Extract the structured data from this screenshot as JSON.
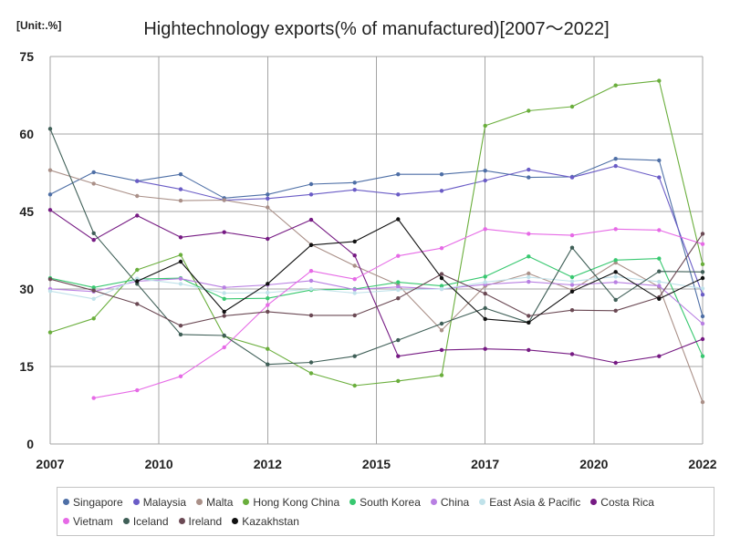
{
  "chart_data": {
    "type": "line",
    "title": "Hightechnology exports(% of manufactured)[2007～2022]",
    "unit_label": "[Unit:.%]",
    "x": [
      2007,
      2008,
      2009,
      2010,
      2011,
      2012,
      2013,
      2014,
      2015,
      2016,
      2017,
      2018,
      2019,
      2020,
      2021,
      2022
    ],
    "xlim": [
      2007,
      2022
    ],
    "xticklabels": [
      "2007",
      "2010",
      "2012",
      "2015",
      "2017",
      "2020",
      "2022"
    ],
    "ylim": [
      0,
      75
    ],
    "yticks": [
      0,
      15,
      30,
      45,
      60,
      75
    ],
    "grid": true,
    "legend": "bottom",
    "series": [
      {
        "name": "Singapore",
        "color": "#4e6fa6",
        "values": [
          48.3,
          52.6,
          50.9,
          52.2,
          47.6,
          48.3,
          50.3,
          50.6,
          52.2,
          52.2,
          52.9,
          51.6,
          51.7,
          55.2,
          54.9,
          24.7
        ]
      },
      {
        "name": "Malaysia",
        "color": "#6a5cc6",
        "values": [
          null,
          null,
          50.9,
          49.3,
          47.2,
          47.5,
          48.3,
          49.2,
          48.3,
          49.0,
          51.0,
          53.1,
          51.6,
          53.8,
          51.6,
          28.9
        ]
      },
      {
        "name": "Malta",
        "color": "#aa9088",
        "values": [
          53.0,
          50.4,
          48.0,
          47.1,
          47.2,
          45.8,
          38.6,
          34.5,
          30.8,
          22.0,
          30.6,
          33.0,
          29.8,
          35.1,
          30.4,
          8.1
        ]
      },
      {
        "name": "Hong Kong China",
        "color": "#6aae3c",
        "values": [
          21.6,
          24.3,
          33.7,
          36.6,
          20.9,
          18.4,
          13.7,
          11.3,
          12.2,
          13.3,
          61.6,
          64.5,
          65.3,
          69.4,
          70.3,
          34.8
        ]
      },
      {
        "name": "South Korea",
        "color": "#38c870",
        "values": [
          32.1,
          30.3,
          31.9,
          32.1,
          28.1,
          28.2,
          29.8,
          30.0,
          31.3,
          30.6,
          32.4,
          36.3,
          32.3,
          35.6,
          35.9,
          17.0
        ]
      },
      {
        "name": "China",
        "color": "#b87fe2",
        "values": [
          30.0,
          29.5,
          31.5,
          32.0,
          30.3,
          30.8,
          31.6,
          29.9,
          30.4,
          30.0,
          30.9,
          31.4,
          30.8,
          31.3,
          30.6,
          23.3
        ]
      },
      {
        "name": "East Asia & Pacific",
        "color": "#c0e2ea",
        "values": [
          29.6,
          28.1,
          32.0,
          31.0,
          29.2,
          29.3,
          30.0,
          29.2,
          29.8,
          30.0,
          31.3,
          32.3,
          31.5,
          32.4,
          31.4,
          30.1
        ]
      },
      {
        "name": "Costa Rica",
        "color": "#761a83",
        "values": [
          45.3,
          39.5,
          44.2,
          40.0,
          41.0,
          39.7,
          43.4,
          36.5,
          17.0,
          18.2,
          18.4,
          18.2,
          17.4,
          15.7,
          17.0,
          20.3
        ]
      },
      {
        "name": "Vietnam",
        "color": "#e66ae6",
        "values": [
          null,
          8.9,
          10.4,
          13.1,
          18.7,
          26.9,
          33.5,
          31.9,
          36.4,
          37.9,
          41.6,
          40.7,
          40.4,
          41.6,
          41.4,
          38.7
        ]
      },
      {
        "name": "Iceland",
        "color": "#3f5f57",
        "values": [
          61.0,
          40.8,
          31.0,
          21.2,
          21.0,
          15.4,
          15.8,
          17.0,
          20.1,
          23.3,
          26.3,
          23.5,
          38.0,
          27.9,
          33.4,
          33.3
        ]
      },
      {
        "name": "Ireland",
        "color": "#6b4954",
        "values": [
          31.9,
          29.7,
          27.1,
          22.9,
          24.8,
          25.6,
          24.9,
          24.9,
          28.2,
          32.9,
          29.1,
          24.8,
          25.9,
          25.8,
          28.4,
          40.7
        ]
      },
      {
        "name": "Kazakhstan",
        "color": "#111111",
        "values": [
          null,
          null,
          31.5,
          35.3,
          25.6,
          31.0,
          38.5,
          39.2,
          43.5,
          32.1,
          24.2,
          23.5,
          29.5,
          33.3,
          28.1,
          32.1
        ]
      }
    ]
  }
}
